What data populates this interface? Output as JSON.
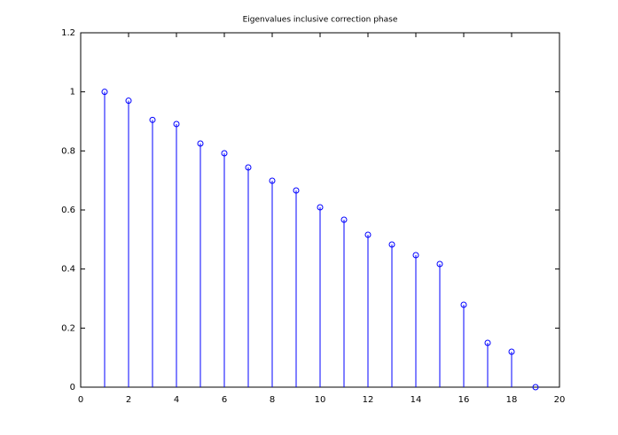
{
  "chart_data": {
    "type": "stem",
    "title": "Eigenvalues inclusive correction phase",
    "x": [
      1,
      2,
      3,
      4,
      5,
      6,
      7,
      8,
      9,
      10,
      11,
      12,
      13,
      14,
      15,
      16,
      17,
      18,
      19
    ],
    "values": [
      1.0,
      0.97,
      0.905,
      0.891,
      0.825,
      0.792,
      0.744,
      0.699,
      0.666,
      0.609,
      0.567,
      0.516,
      0.483,
      0.447,
      0.417,
      0.279,
      0.15,
      0.12,
      0
    ],
    "color": "#0000ff",
    "xlim": [
      0,
      20
    ],
    "xticks": [
      0,
      2,
      4,
      6,
      8,
      10,
      12,
      14,
      16,
      18,
      20
    ],
    "ylim": [
      0,
      1.2
    ],
    "yticks": [
      0,
      0.2,
      0.4,
      0.6,
      0.8,
      1,
      1.2
    ]
  }
}
